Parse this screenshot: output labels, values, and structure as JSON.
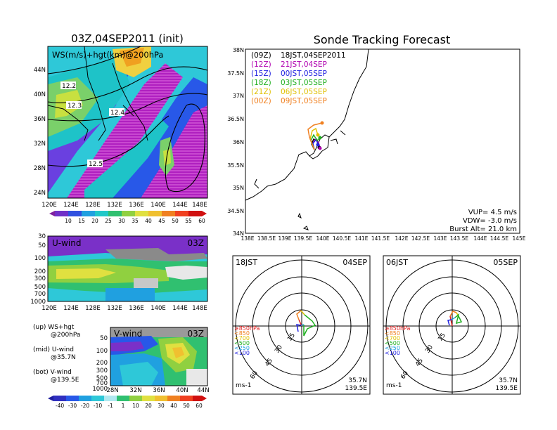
{
  "map_panel": {
    "title": "03Z,04SEP2011 (init)",
    "inner_label": "WS(m/s)+hgt(km)@200hPa",
    "lat_labels": [
      "44N",
      "40N",
      "36N",
      "32N",
      "28N",
      "24N"
    ],
    "lon_labels": [
      "120E",
      "124E",
      "128E",
      "132E",
      "136E",
      "140E",
      "144E",
      "148E"
    ],
    "contour_labels": [
      "12.2",
      "12.3",
      "12.4",
      "12.5"
    ],
    "colorbar_labels": [
      "10",
      "15",
      "20",
      "25",
      "30",
      "35",
      "40",
      "45",
      "50",
      "55",
      "60"
    ]
  },
  "uwind_panel": {
    "label": "U-wind",
    "time": "03Z",
    "y_labels": [
      "30",
      "50",
      "100",
      "200",
      "300",
      "500",
      "700",
      "1000"
    ],
    "x_labels": [
      "120E",
      "124E",
      "128E",
      "132E",
      "136E",
      "140E",
      "144E",
      "148E"
    ]
  },
  "vwind_panel": {
    "label": "V-wind",
    "time": "03Z",
    "y_labels": [
      "50",
      "100",
      "200",
      "300",
      "500",
      "700",
      "1000"
    ],
    "x_labels": [
      "28N",
      "32N",
      "36N",
      "40N",
      "44N"
    ],
    "colorbar_labels": [
      "-40",
      "-30",
      "-20",
      "-10",
      "-1",
      "1",
      "10",
      "20",
      "30",
      "40",
      "50",
      "60"
    ]
  },
  "legend_notes": [
    {
      "a": "(up) WS+hgt",
      "b": "@200hPa"
    },
    {
      "a": "(mid) U-wind",
      "b": "@35.7N"
    },
    {
      "a": "(bot) V-wind",
      "b": "@139.5E"
    }
  ],
  "tracking": {
    "title": "Sonde Tracking Forecast",
    "lat_labels": [
      "38N",
      "37.5N",
      "37N",
      "36.5N",
      "36N",
      "35.5N",
      "35N",
      "34.5N",
      "34N"
    ],
    "lon_labels": [
      "138E",
      "138.5E",
      "139E",
      "139.5E",
      "140E",
      "140.5E",
      "141E",
      "141.5E",
      "142E",
      "142.5E",
      "143E",
      "143.5E",
      "144E",
      "144.5E",
      "145E"
    ],
    "launches": [
      {
        "utc": "(09Z)",
        "jst": "18JST,04SEP2011",
        "color": "#000000"
      },
      {
        "utc": "(12Z)",
        "jst": "21JST,04SEP",
        "color": "#b000b0"
      },
      {
        "utc": "(15Z)",
        "jst": "00JST,05SEP",
        "color": "#2020e0"
      },
      {
        "utc": "(18Z)",
        "jst": "03JST,05SEP",
        "color": "#20b020"
      },
      {
        "utc": "(21Z)",
        "jst": "06JST,05SEP",
        "color": "#e0c000"
      },
      {
        "utc": "(00Z)",
        "jst": "09JST,05SEP",
        "color": "#f08020"
      }
    ],
    "vup": "VUP=  4.5 m/s",
    "vdw": "VDW= -3.0 m/s",
    "burst": "Burst Alt= 21.0 km"
  },
  "hodo_left": {
    "time": "18JST",
    "date": "04SEP",
    "lat": "35.7N",
    "lon": "139.5E",
    "units": "ms-1",
    "rings": [
      "15",
      "30",
      "45",
      "60"
    ]
  },
  "hodo_right": {
    "time": "06JST",
    "date": "05SEP",
    "lat": "35.7N",
    "lon": "139.5E",
    "units": "ms-1",
    "rings": [
      "15",
      "30",
      "45",
      "60"
    ]
  },
  "levels_legend": [
    {
      "text": "≥850hPa",
      "color": "#e02020"
    },
    {
      "text": "<850",
      "color": "#f08020"
    },
    {
      "text": "<700",
      "color": "#e0c000"
    },
    {
      "text": "<500",
      "color": "#20b020"
    },
    {
      "text": "<250",
      "color": "#20a0e0"
    },
    {
      "text": "<100",
      "color": "#2020e0"
    }
  ]
}
